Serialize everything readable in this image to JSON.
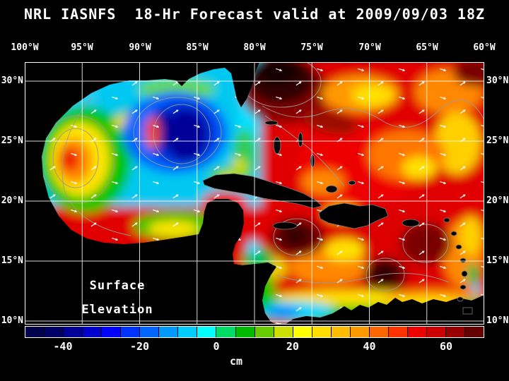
{
  "title": "NRL IASNFS  18-Hr Forecast valid at 2009/09/03 18Z",
  "axes": {
    "lon_labels": [
      "100°W",
      "95°W",
      "90°W",
      "85°W",
      "80°W",
      "75°W",
      "70°W",
      "65°W",
      "60°W"
    ],
    "lat_labels": [
      "30°N",
      "25°N",
      "20°N",
      "15°N",
      "10°N"
    ]
  },
  "map_overlay": {
    "field_label_line1": "Surface",
    "field_label_line2": "Elevation"
  },
  "colorbar": {
    "tick_labels": [
      "-40",
      "-20",
      "0",
      "20",
      "40",
      "60"
    ],
    "unit_label": "cm",
    "colors": [
      "#00004c",
      "#000066",
      "#000099",
      "#0000cc",
      "#0000ff",
      "#0033ff",
      "#0066ff",
      "#0099ff",
      "#00ccff",
      "#00ffff",
      "#00dd66",
      "#00bb00",
      "#66cc00",
      "#cce000",
      "#ffff00",
      "#ffdd00",
      "#ffbb00",
      "#ff9900",
      "#ff6600",
      "#ff3300",
      "#ee0000",
      "#cc0000",
      "#990000",
      "#660000"
    ]
  },
  "chart_data": {
    "type": "heatmap",
    "title": "NRL IASNFS  18-Hr Forecast valid at 2009/09/03 18Z",
    "variable": "Surface Elevation",
    "unit": "cm",
    "x_ticks": [
      "100°W",
      "95°W",
      "90°W",
      "85°W",
      "80°W",
      "75°W",
      "70°W",
      "65°W",
      "60°W"
    ],
    "y_ticks": [
      "30°N",
      "25°N",
      "20°N",
      "15°N",
      "10°N"
    ],
    "colorbar_ticks": [
      -40,
      -20,
      0,
      20,
      40,
      60
    ],
    "region": "Gulf of Mexico and Caribbean Sea"
  }
}
